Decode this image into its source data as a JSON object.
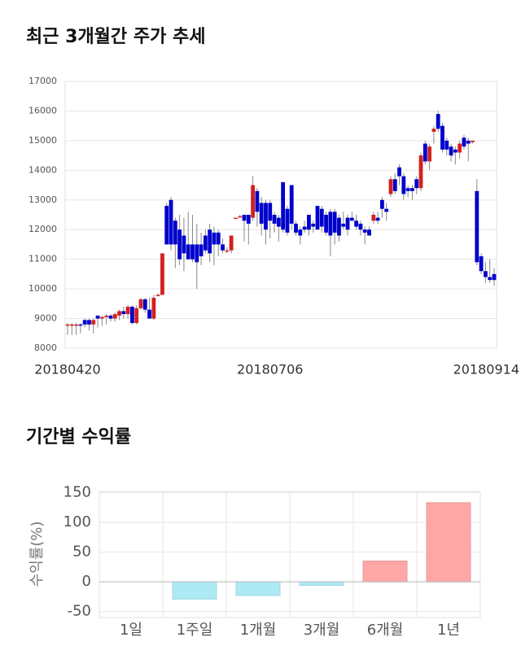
{
  "chart_data": [
    {
      "type": "candlestick",
      "title": "최근 3개월간 주가 추세",
      "categories": [
        "20180420",
        null,
        null,
        null,
        null,
        null,
        null,
        null,
        null,
        null,
        null,
        null,
        null,
        null,
        null,
        null,
        null,
        null,
        null,
        null,
        null,
        null,
        null,
        null,
        null,
        null,
        null,
        null,
        null,
        null,
        null,
        null,
        null,
        null,
        null,
        null,
        null,
        null,
        null,
        null,
        null,
        null,
        null,
        null,
        null,
        null,
        null,
        "20180706",
        null,
        null,
        null,
        null,
        null,
        null,
        null,
        null,
        null,
        null,
        null,
        null,
        null,
        null,
        null,
        null,
        null,
        null,
        null,
        null,
        null,
        null,
        null,
        null,
        null,
        null,
        null,
        null,
        null,
        null,
        null,
        null,
        null,
        null,
        null,
        null,
        null,
        null,
        null,
        null,
        null,
        null,
        null,
        null,
        null,
        null,
        null,
        null,
        null,
        null,
        null,
        "20180914"
      ],
      "open": [
        8800,
        8800,
        8800,
        8800,
        8950,
        8950,
        8800,
        9100,
        9000,
        9050,
        9100,
        9000,
        9100,
        9250,
        9150,
        9400,
        8850,
        9350,
        9650,
        9300,
        9000,
        9800,
        9800,
        12800,
        13000,
        12300,
        12000,
        11800,
        11500,
        11500,
        11500,
        11500,
        11800,
        12000,
        11900,
        11900,
        11500,
        11300,
        11300,
        12400,
        12450,
        12500,
        12500,
        12400,
        13300,
        12900,
        12900,
        12900,
        12500,
        12400,
        13600,
        12700,
        13500,
        12200,
        12000,
        12100,
        12500,
        12200,
        12800,
        12700,
        12500,
        12600,
        12600,
        12400,
        12200,
        12400,
        12400,
        12300,
        12200,
        12000,
        12000,
        12300,
        12400,
        13000,
        12700,
        13200,
        13700,
        14100,
        13800,
        13400,
        13400,
        13700,
        13400,
        14900,
        14300,
        15300,
        15900,
        15500,
        15000,
        14800,
        14700,
        14600,
        15100,
        15000,
        14950,
        13300,
        11100,
        10600,
        10400,
        10500
      ],
      "high": [
        8850,
        8850,
        8850,
        8850,
        9000,
        9000,
        9000,
        9100,
        9100,
        9150,
        9150,
        9200,
        9300,
        9400,
        9450,
        9450,
        9450,
        9700,
        9700,
        9700,
        9800,
        9850,
        11200,
        12900,
        13100,
        12400,
        12500,
        12400,
        12600,
        12500,
        12200,
        11900,
        12000,
        12200,
        12100,
        12000,
        11700,
        11400,
        11800,
        12400,
        12500,
        12500,
        12500,
        13800,
        13400,
        13100,
        13000,
        13000,
        12600,
        12500,
        13600,
        12800,
        13500,
        12300,
        12100,
        12300,
        12500,
        12300,
        12800,
        12800,
        12600,
        12700,
        12700,
        12500,
        12600,
        12500,
        12600,
        12500,
        12300,
        12100,
        12100,
        12600,
        12600,
        13100,
        12900,
        13800,
        13900,
        14200,
        13900,
        13500,
        13500,
        13800,
        14600,
        15000,
        14900,
        15500,
        16000,
        15600,
        15100,
        14900,
        14800,
        15000,
        15200,
        15100,
        15000,
        13700,
        11200,
        10900,
        11000,
        10700
      ],
      "low": [
        8450,
        8450,
        8450,
        8500,
        8700,
        8600,
        8500,
        8700,
        8750,
        8800,
        8900,
        8900,
        8950,
        9000,
        9000,
        8800,
        8800,
        9300,
        9200,
        9000,
        8950,
        9750,
        9800,
        11500,
        11300,
        10700,
        10800,
        10600,
        11000,
        10900,
        10000,
        10800,
        11200,
        10900,
        10800,
        11100,
        11200,
        11200,
        11200,
        12400,
        12400,
        11600,
        11500,
        12300,
        12100,
        11800,
        11500,
        11700,
        11900,
        11600,
        11900,
        11800,
        12000,
        11800,
        11500,
        11900,
        11800,
        11900,
        12000,
        11900,
        11800,
        11100,
        11500,
        11600,
        12000,
        11800,
        12300,
        12000,
        11800,
        11500,
        11800,
        12200,
        12200,
        12400,
        12300,
        13100,
        13200,
        13500,
        13000,
        13100,
        13000,
        13200,
        13300,
        14200,
        14000,
        14900,
        15300,
        14600,
        14500,
        14300,
        14200,
        14400,
        14700,
        14300,
        14900,
        10800,
        10500,
        10200,
        10200,
        10100
      ],
      "close": [
        8800,
        8800,
        8800,
        8780,
        8800,
        8800,
        8950,
        9000,
        9050,
        9100,
        9000,
        9150,
        9250,
        9150,
        9400,
        8850,
        9350,
        9650,
        9300,
        9000,
        9700,
        9800,
        11200,
        11500,
        11500,
        11500,
        11000,
        11200,
        11000,
        11000,
        10900,
        11100,
        11300,
        11200,
        11500,
        11500,
        11300,
        11300,
        11800,
        12400,
        12450,
        12300,
        12200,
        13500,
        12600,
        12200,
        12000,
        12300,
        12200,
        12100,
        12000,
        11900,
        12200,
        11900,
        11800,
        12000,
        12000,
        12100,
        12000,
        12100,
        11900,
        11800,
        11900,
        11800,
        12100,
        12000,
        12300,
        12100,
        12000,
        11900,
        11800,
        12500,
        12300,
        12700,
        12600,
        13700,
        13300,
        13800,
        13200,
        13300,
        13300,
        13400,
        14500,
        14300,
        14800,
        15400,
        15400,
        14700,
        14700,
        14500,
        14600,
        14900,
        14800,
        14900,
        15000,
        10900,
        10600,
        10400,
        10300,
        10300
      ],
      "up_color": "#d42020",
      "down_color": "#0000cc",
      "ylim": [
        8000,
        17000
      ],
      "yticks": [
        8000,
        9000,
        10000,
        11000,
        12000,
        13000,
        14000,
        15000,
        16000,
        17000
      ],
      "grid": true
    },
    {
      "type": "bar",
      "title": "기간별 수익률",
      "y_label": "수익률(%)",
      "categories": [
        "1일",
        "1주일",
        "1개월",
        "3개월",
        "6개월",
        "1년"
      ],
      "values": [
        0,
        -29,
        -23,
        -6,
        35,
        133
      ],
      "positive_color": "#ffa6a6",
      "negative_color": "#aeeaf4",
      "ylim": [
        -60,
        152
      ],
      "yticks": [
        -50,
        0,
        50,
        100,
        150
      ],
      "grid": true
    }
  ]
}
